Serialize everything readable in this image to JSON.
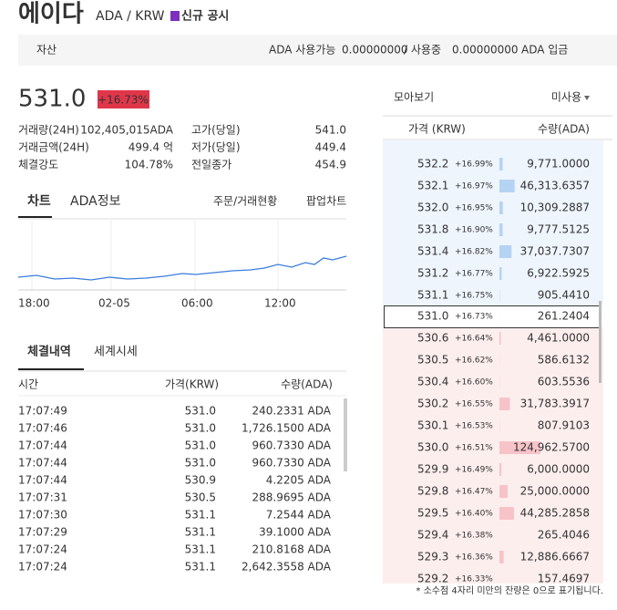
{
  "header": {
    "title": "에이다",
    "pair": "ADA / KRW",
    "notice": "신규 공시"
  },
  "balance": {
    "label": "자산",
    "available_label": "ADA 사용가능",
    "available": "0.00000000",
    "in_use_label": "/ 사용중",
    "in_use": "0.00000000",
    "deposit": "ADA 입금"
  },
  "ticker": {
    "price": "531.0",
    "change": "+16.73%",
    "stats_left": [
      {
        "label": "거래량(24H)",
        "value": "102,405,015ADA"
      },
      {
        "label": "거래금액(24H)",
        "value": "499.4 억"
      },
      {
        "label": "체결강도",
        "value": "104.78%"
      }
    ],
    "stats_right": [
      {
        "label": "고가(당일)",
        "value": "541.0"
      },
      {
        "label": "저가(당일)",
        "value": "449.4"
      },
      {
        "label": "전일종가",
        "value": "454.9"
      }
    ]
  },
  "tabs": [
    "차트",
    "ADA정보"
  ],
  "tab_links": [
    "주문/거래현황",
    "팝업차트"
  ],
  "chart": {
    "x_labels": [
      "18:00",
      "02-05",
      "06:00",
      "12:00"
    ]
  },
  "trades": {
    "tabs": [
      "체결내역",
      "세계시세"
    ],
    "columns": [
      "시간",
      "가격(KRW)",
      "수량(ADA)"
    ],
    "rows": [
      {
        "time": "17:07:49",
        "price": "531.0",
        "qty": "240.2331 ADA",
        "color": "#e0364a"
      },
      {
        "time": "17:07:46",
        "price": "531.0",
        "qty": "1,726.1500 ADA",
        "color": "#e0364a"
      },
      {
        "time": "17:07:44",
        "price": "531.0",
        "qty": "960.7330 ADA",
        "color": "#e0364a"
      },
      {
        "time": "17:07:44",
        "price": "531.0",
        "qty": "960.7330 ADA",
        "color": "#e0364a"
      },
      {
        "time": "17:07:44",
        "price": "530.9",
        "qty": "4.2205 ADA",
        "color": "#e0364a"
      },
      {
        "time": "17:07:31",
        "price": "530.5",
        "qty": "288.9695 ADA",
        "color": "#2f6fd1"
      },
      {
        "time": "17:07:30",
        "price": "531.1",
        "qty": "7.2544 ADA",
        "color": "#e0364a"
      },
      {
        "time": "17:07:29",
        "price": "531.1",
        "qty": "39.1000 ADA",
        "color": "#e0364a"
      },
      {
        "time": "17:07:24",
        "price": "531.1",
        "qty": "210.8168 ADA",
        "color": "#e0364a"
      },
      {
        "time": "17:07:24",
        "price": "531.1",
        "qty": "2,642.3558 ADA",
        "color": "#e0364a"
      }
    ]
  },
  "orderbook": {
    "group_label": "모아보기",
    "group_value": "미사용",
    "columns": [
      "가격 (KRW)",
      "수량(ADA)"
    ],
    "asks": [
      {
        "price": "532.2",
        "change": "+16.99%",
        "qty": {
          "value": 9771.0,
          "label": "9,771.0000"
        }
      },
      {
        "price": "532.1",
        "change": "+16.97%",
        "qty": {
          "value": 46313.6357,
          "label": "46,313.6357"
        }
      },
      {
        "price": "532.0",
        "change": "+16.95%",
        "qty": {
          "value": 10309.2887,
          "label": "10,309.2887"
        }
      },
      {
        "price": "531.8",
        "change": "+16.90%",
        "qty": {
          "value": 9777.5125,
          "label": "9,777.5125"
        }
      },
      {
        "price": "531.4",
        "change": "+16.82%",
        "qty": {
          "value": 37037.7307,
          "label": "37,037.7307"
        }
      },
      {
        "price": "531.2",
        "change": "+16.77%",
        "qty": {
          "value": 6922.5925,
          "label": "6,922.5925"
        }
      },
      {
        "price": "531.1",
        "change": "+16.75%",
        "qty": {
          "value": 905.441,
          "label": "905.4410"
        }
      }
    ],
    "current": {
      "price": "531.0",
      "change": "+16.73%",
      "qty": {
        "value": 261.2404,
        "label": "261.2404"
      }
    },
    "bids": [
      {
        "price": "530.6",
        "change": "+16.64%",
        "qty": {
          "value": 4461.0,
          "label": "4,461.0000"
        }
      },
      {
        "price": "530.5",
        "change": "+16.62%",
        "qty": {
          "value": 586.6132,
          "label": "586.6132"
        }
      },
      {
        "price": "530.4",
        "change": "+16.60%",
        "qty": {
          "value": 603.5536,
          "label": "603.5536"
        }
      },
      {
        "price": "530.2",
        "change": "+16.55%",
        "qty": {
          "value": 31783.3917,
          "label": "31,783.3917"
        }
      },
      {
        "price": "530.1",
        "change": "+16.53%",
        "qty": {
          "value": 807.9103,
          "label": "807.9103"
        }
      },
      {
        "price": "530.0",
        "change": "+16.51%",
        "qty": {
          "value": 124962.57,
          "label": "124,962.5700"
        }
      },
      {
        "price": "529.9",
        "change": "+16.49%",
        "qty": {
          "value": 6000.0,
          "label": "6,000.0000"
        }
      },
      {
        "price": "529.8",
        "change": "+16.47%",
        "qty": {
          "value": 25000.0,
          "label": "25,000.0000"
        }
      },
      {
        "price": "529.5",
        "change": "+16.40%",
        "qty": {
          "value": 44285.2858,
          "label": "44,285.2858"
        }
      },
      {
        "price": "529.4",
        "change": "+16.38%",
        "qty": {
          "value": 265.4046,
          "label": "265.4046"
        }
      },
      {
        "price": "529.3",
        "change": "+16.36%",
        "qty": {
          "value": 12886.6667,
          "label": "12,886.6667"
        }
      },
      {
        "price": "529.2",
        "change": "+16.33%",
        "qty": {
          "value": 157.4697,
          "label": "157.4697"
        }
      }
    ]
  },
  "footnote": "* 소수점 4자리 미만의 잔량은 0으로 표기됩니다."
}
